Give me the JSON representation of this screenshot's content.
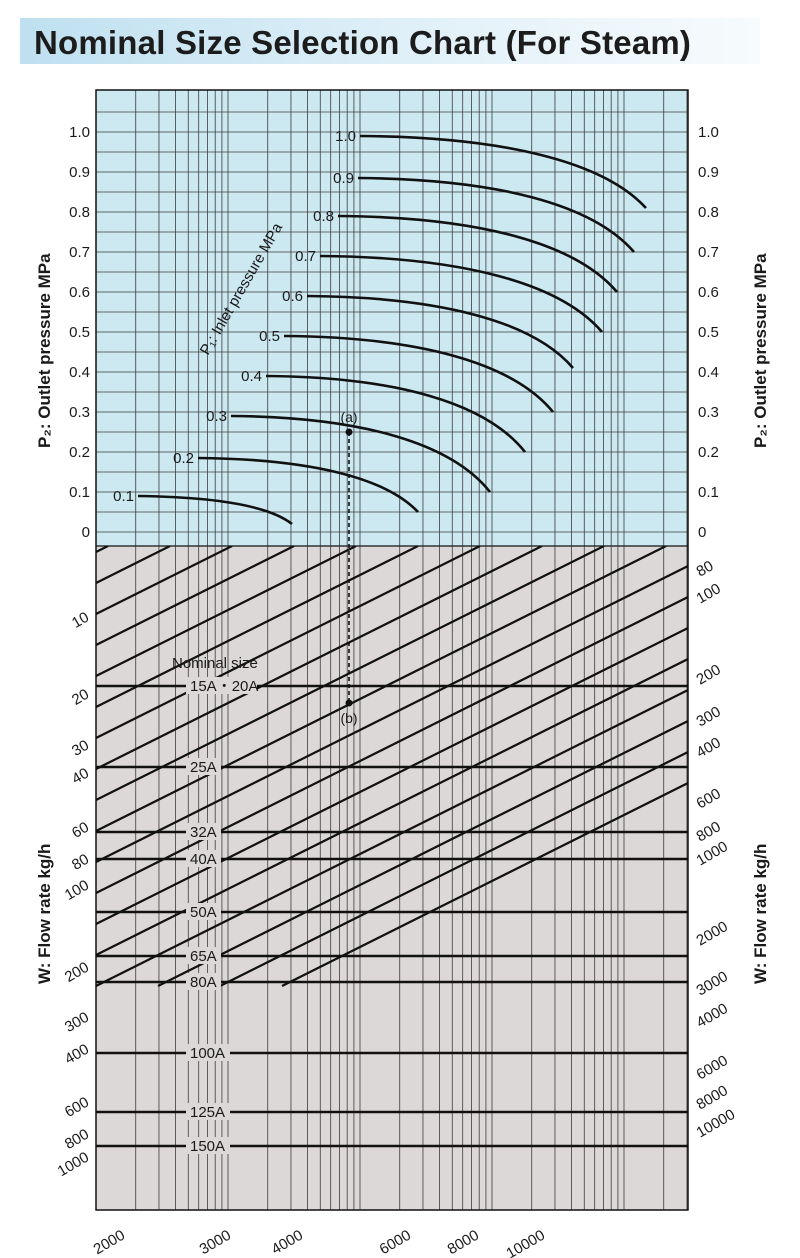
{
  "title": "Nominal Size Selection Chart (For Steam)",
  "colors": {
    "upper_bg": "#cce8f1",
    "lower_bg": "#dcd8d7",
    "grid": "#3c3c3c",
    "line": "#111111"
  },
  "chart_data": {
    "type": "nomogram",
    "upper_panel": {
      "ylabel": "P₂: Outlet pressure MPa",
      "y_ticks": [
        "0",
        "0.1",
        "0.2",
        "0.3",
        "0.4",
        "0.5",
        "0.6",
        "0.7",
        "0.8",
        "0.9",
        "1.0"
      ],
      "ylim": [
        0,
        1.0
      ],
      "curve_family_label": "P₁: Inlet pressure MPa",
      "curves": [
        {
          "label": "0.1",
          "p1": 0.1,
          "p2_start": 0.09,
          "p2_end": 0.02
        },
        {
          "label": "0.2",
          "p1": 0.2,
          "p2_start": 0.185,
          "p2_end": 0.05
        },
        {
          "label": "0.3",
          "p1": 0.3,
          "p2_start": 0.29,
          "p2_end": 0.1
        },
        {
          "label": "0.4",
          "p1": 0.4,
          "p2_start": 0.39,
          "p2_end": 0.2
        },
        {
          "label": "0.5",
          "p1": 0.5,
          "p2_start": 0.49,
          "p2_end": 0.3
        },
        {
          "label": "0.6",
          "p1": 0.6,
          "p2_start": 0.59,
          "p2_end": 0.41
        },
        {
          "label": "0.7",
          "p1": 0.7,
          "p2_start": 0.69,
          "p2_end": 0.5
        },
        {
          "label": "0.8",
          "p1": 0.8,
          "p2_start": 0.79,
          "p2_end": 0.6
        },
        {
          "label": "0.9",
          "p1": 0.9,
          "p2_start": 0.885,
          "p2_end": 0.7
        },
        {
          "label": "1.0",
          "p1": 1.0,
          "p2_start": 0.99,
          "p2_end": 0.81
        }
      ]
    },
    "lower_panel": {
      "ylabel": "W: Flow rate kg/h",
      "left_flow_ticks": [
        "10",
        "20",
        "30",
        "40",
        "60",
        "80",
        "100",
        "200",
        "300",
        "400",
        "600",
        "800",
        "1000"
      ],
      "right_flow_ticks": [
        "80",
        "100",
        "200",
        "300",
        "400",
        "600",
        "800",
        "1000",
        "2000",
        "3000",
        "4000",
        "6000",
        "8000",
        "10000"
      ],
      "bottom_flow_ticks": [
        "2000",
        "3000",
        "4000",
        "6000",
        "8000",
        "10000"
      ],
      "nominal_size_label": "Nominal size",
      "nominal_sizes": [
        "15A・20A",
        "25A",
        "32A",
        "40A",
        "50A",
        "65A",
        "80A",
        "100A",
        "125A",
        "150A"
      ]
    },
    "example": {
      "point_a": "(a)",
      "point_b": "(b)",
      "p1": 0.3,
      "p2": 0.25
    }
  }
}
